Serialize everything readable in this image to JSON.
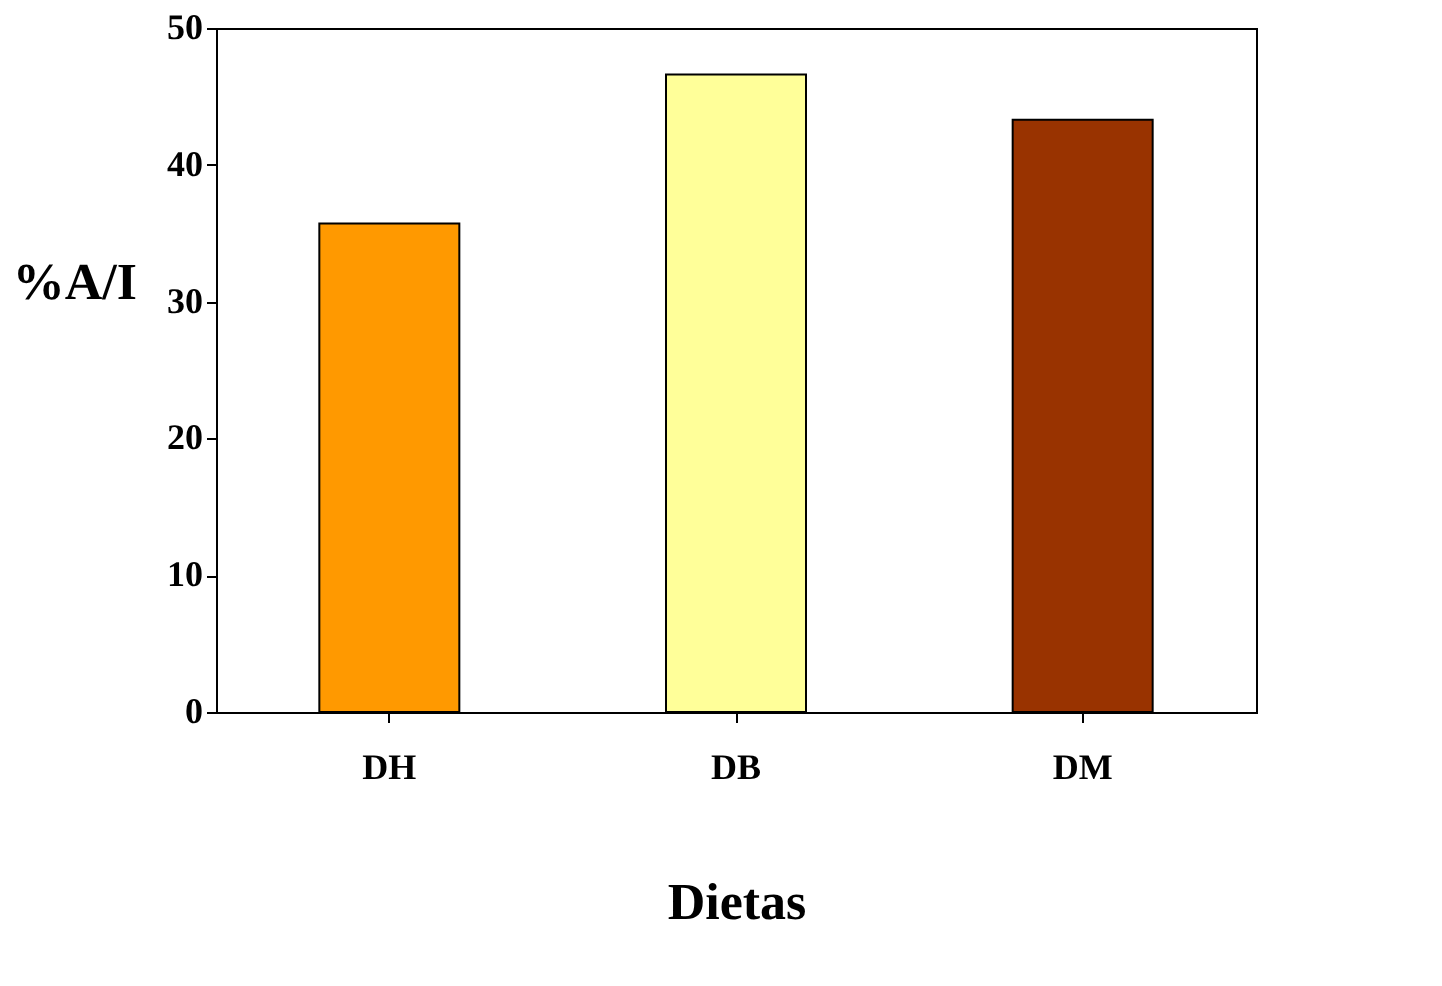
{
  "chart_data": {
    "type": "bar",
    "xlabel": "Dietas",
    "ylabel": "%A/I",
    "categories": [
      "DH",
      "DB",
      "DM"
    ],
    "values": [
      35.7,
      46.6,
      43.3
    ],
    "colors": [
      "#ff9900",
      "#ffff99",
      "#993300"
    ],
    "ylim": [
      0,
      50
    ],
    "yticks": [
      0,
      10,
      20,
      30,
      40,
      50
    ],
    "grid": false
  }
}
